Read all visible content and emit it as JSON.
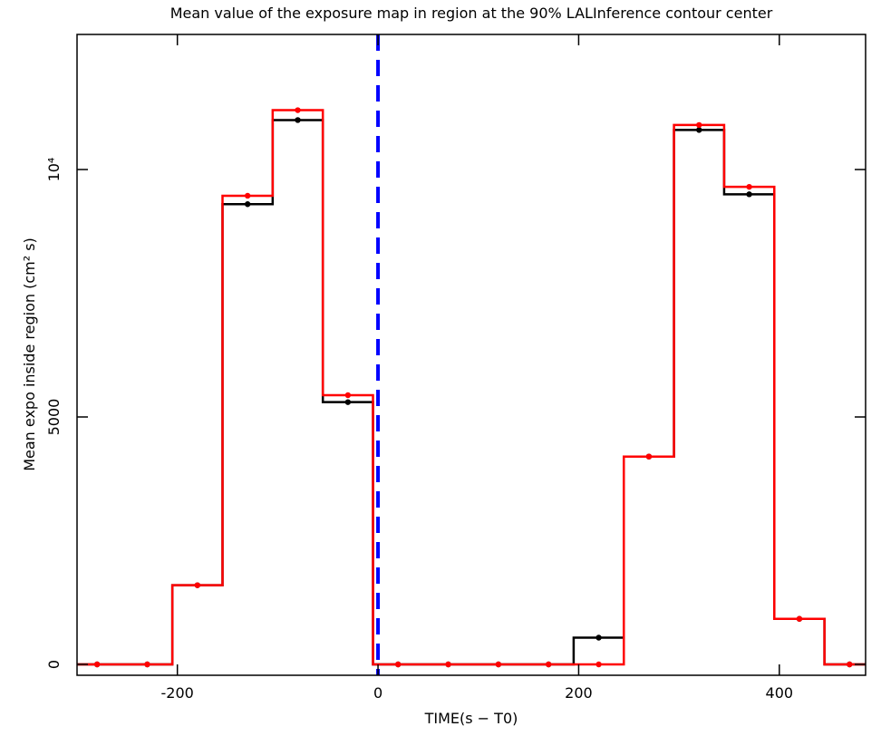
{
  "chart_data": {
    "type": "step",
    "title": "Mean value of the exposure map in region at the 90% LALInference contour center",
    "x_label": "TIME(s − T0)",
    "y_label": "Mean expo inside region (cm² s)",
    "x": [
      -280,
      -230,
      -180,
      -130,
      -80,
      -30,
      20,
      70,
      120,
      170,
      220,
      270,
      320,
      370,
      420,
      470
    ],
    "bin_width": 50,
    "series": [
      {
        "color": "#000000",
        "values": [
          0,
          0,
          1600,
          9300,
          11000,
          5300,
          0,
          0,
          0,
          0,
          540,
          4200,
          10800,
          9500,
          920,
          0
        ]
      },
      {
        "color": "#ff0000",
        "values": [
          0,
          0,
          1600,
          9470,
          11200,
          5440,
          0,
          0,
          0,
          0,
          0,
          4200,
          10900,
          9650,
          920,
          0
        ]
      }
    ],
    "vlines": [
      {
        "value": 0,
        "color": "#0000ff"
      }
    ],
    "xlim": [
      -300,
      486
    ],
    "xticks": [
      -200,
      0,
      200,
      400
    ],
    "ylim": [
      -220,
      12730
    ],
    "yticks": [
      0,
      5000,
      {
        "value": 10000,
        "label": "10⁴"
      }
    ]
  }
}
